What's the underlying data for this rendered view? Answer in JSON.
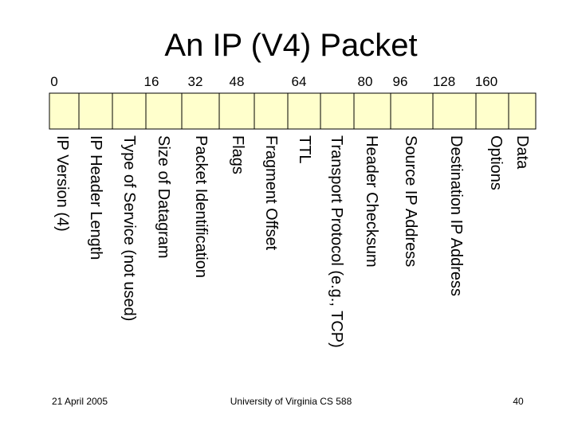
{
  "title": "An IP (V4) Packet",
  "bit_offsets": [
    "0",
    "16",
    "32",
    "48",
    "64",
    "80",
    "96",
    "128",
    "160"
  ],
  "fields": [
    "IP Version (4)",
    "IP Header Length",
    "Type of Service (not used)",
    "Size of Datagram",
    "Packet Identification",
    "Flags",
    "Fragment Offset",
    "TTL",
    "Transport Protocol (e.g., TCP)",
    "Header Checksum",
    "Source IP Address",
    "Destination IP Address",
    "Options",
    "Data"
  ],
  "footer": {
    "date": "21 April 2005",
    "source": "University of Virginia CS 588",
    "page": "40"
  }
}
